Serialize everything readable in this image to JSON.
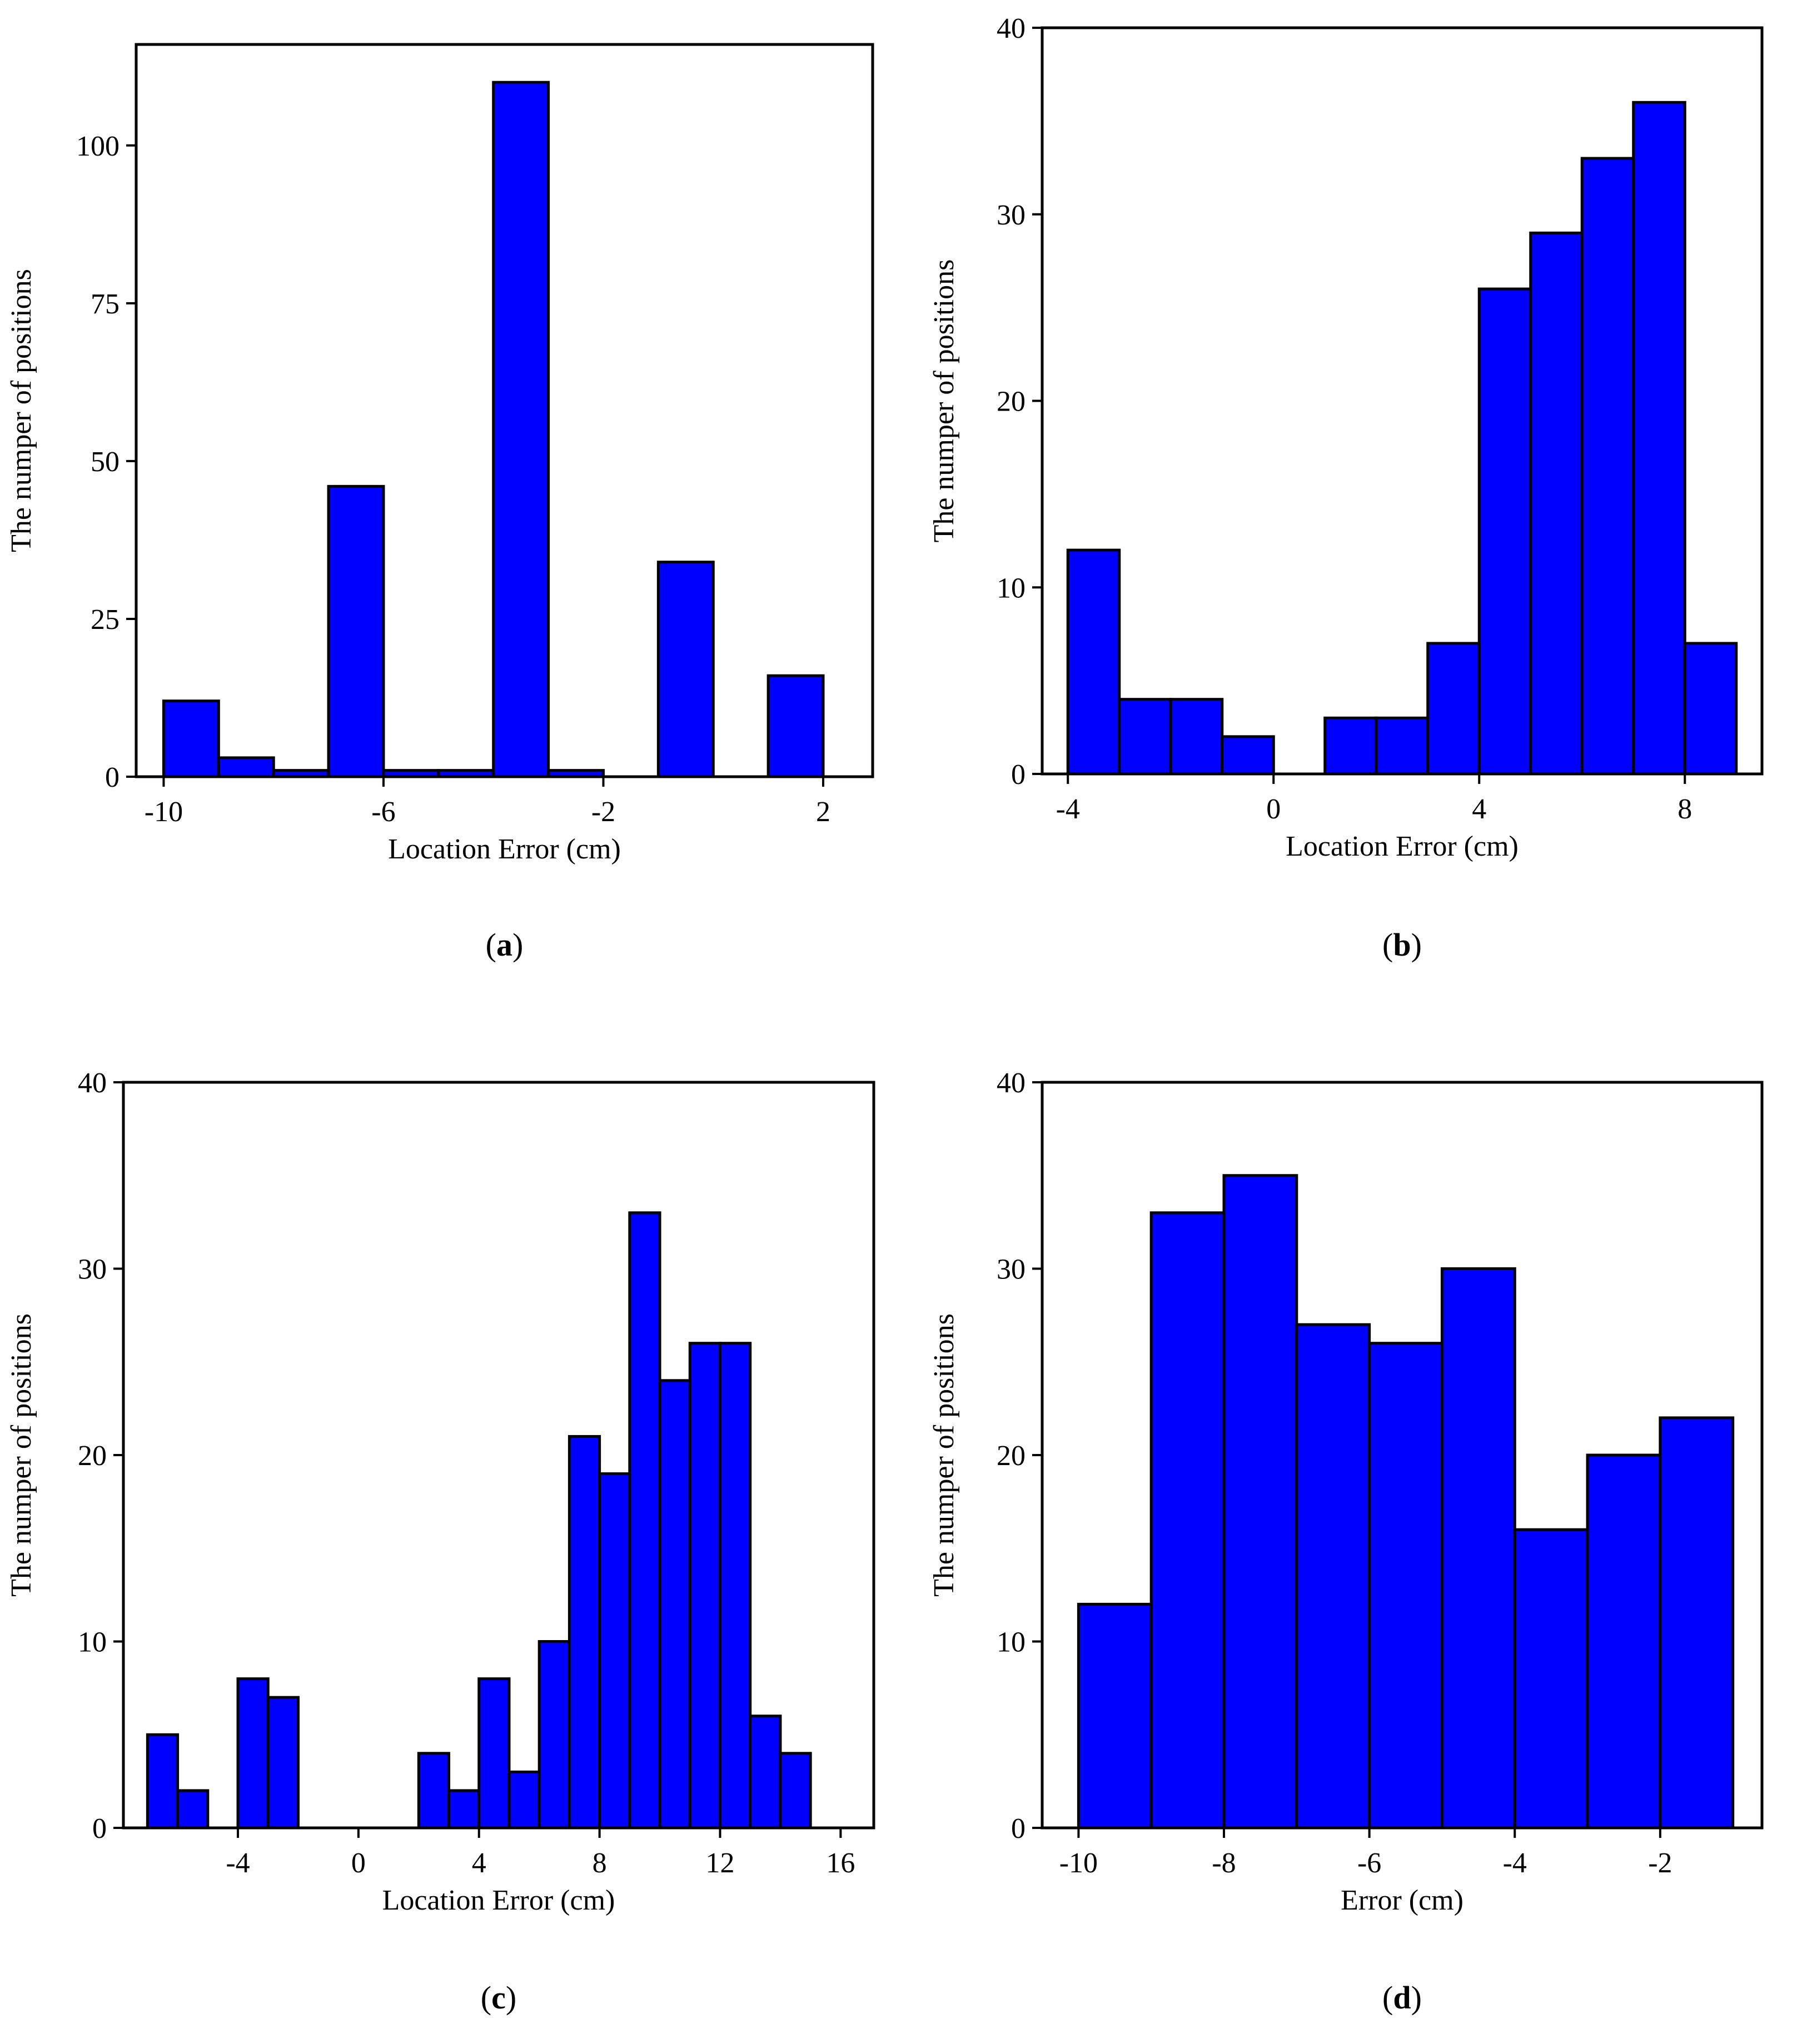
{
  "colors": {
    "bar_fill": "#0000ff",
    "bar_stroke": "#000000",
    "axis": "#000000",
    "background": "#ffffff"
  },
  "chart_data": [
    {
      "id": "a",
      "type": "histogram",
      "panel_label_letter": "a",
      "xlabel": "Location Error (cm)",
      "ylabel": "The numper of positions",
      "xlim": [
        -10.5,
        2.9
      ],
      "ylim": [
        0,
        116
      ],
      "xticks": [
        -10,
        -6,
        -2,
        2
      ],
      "xtick_labels": [
        "-10",
        "-6",
        "-2",
        "2"
      ],
      "yticks": [
        0,
        25,
        50,
        75,
        100
      ],
      "ytick_labels": [
        "0",
        "25",
        "50",
        "75",
        "100"
      ],
      "bin_edges": [
        -10,
        -9,
        -8,
        -7,
        -6,
        -5,
        -4,
        -3,
        -2,
        -1,
        0,
        1,
        2,
        3
      ],
      "values": [
        12,
        3,
        1,
        46,
        1,
        1,
        110,
        1,
        0,
        34,
        0,
        16,
        0
      ]
    },
    {
      "id": "b",
      "type": "histogram",
      "panel_label_letter": "b",
      "xlabel": "Location Error (cm)",
      "ylabel": "The numper of positions",
      "xlim": [
        -4.5,
        9.5
      ],
      "ylim": [
        0,
        40
      ],
      "xticks": [
        -4,
        0,
        4,
        8
      ],
      "xtick_labels": [
        "-4",
        "0",
        "4",
        "8"
      ],
      "yticks": [
        0,
        10,
        20,
        30,
        40
      ],
      "ytick_labels": [
        "0",
        "10",
        "20",
        "30",
        "40"
      ],
      "bin_edges": [
        -4,
        -3,
        -2,
        -1,
        0,
        1,
        2,
        3,
        4,
        5,
        6,
        7,
        8,
        9
      ],
      "values": [
        12,
        4,
        4,
        2,
        0,
        3,
        3,
        7,
        26,
        29,
        33,
        36,
        7
      ]
    },
    {
      "id": "c",
      "type": "histogram",
      "panel_label_letter": "c",
      "xlabel": "Location Error (cm)",
      "ylabel": "The numper of positions",
      "xlim": [
        -7.8,
        17.1
      ],
      "ylim": [
        0,
        40
      ],
      "xticks": [
        -4,
        0,
        4,
        8,
        12,
        16
      ],
      "xtick_labels": [
        "-4",
        "0",
        "4",
        "8",
        "12",
        "16"
      ],
      "yticks": [
        0,
        10,
        20,
        30,
        40
      ],
      "ytick_labels": [
        "0",
        "10",
        "20",
        "30",
        "40"
      ],
      "bin_edges": [
        -7,
        -6,
        -5,
        -4,
        -3,
        -2,
        -1,
        0,
        1,
        2,
        3,
        4,
        5,
        6,
        7,
        8,
        9,
        10,
        11,
        12,
        13,
        14,
        15,
        16
      ],
      "values": [
        5,
        2,
        0,
        8,
        7,
        0,
        0,
        0,
        0,
        4,
        2,
        8,
        3,
        10,
        21,
        19,
        33,
        24,
        26,
        26,
        6,
        4,
        0
      ]
    },
    {
      "id": "d",
      "type": "histogram",
      "panel_label_letter": "d",
      "xlabel": "Error (cm)",
      "ylabel": "The numper of positions",
      "xlim": [
        -10.5,
        -0.6
      ],
      "ylim": [
        0,
        40
      ],
      "xticks": [
        -10,
        -8,
        -6,
        -4,
        -2
      ],
      "xtick_labels": [
        "-10",
        "-8",
        "-6",
        "-4",
        "-2"
      ],
      "yticks": [
        0,
        10,
        20,
        30,
        40
      ],
      "ytick_labels": [
        "0",
        "10",
        "20",
        "30",
        "40"
      ],
      "bin_edges": [
        -10,
        -9,
        -8,
        -7,
        -6,
        -5,
        -4,
        -3,
        -2,
        -1
      ],
      "values": [
        12,
        33,
        35,
        27,
        26,
        30,
        16,
        20,
        22
      ]
    }
  ]
}
